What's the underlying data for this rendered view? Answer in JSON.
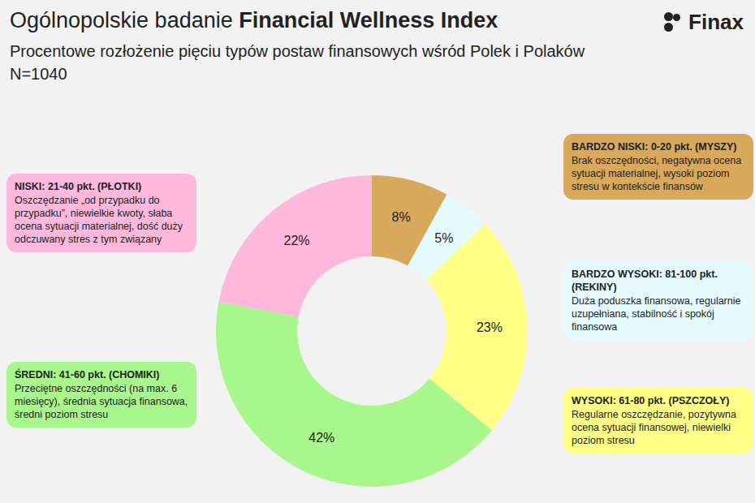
{
  "chart_data": {
    "type": "pie",
    "title": {
      "regular": "Ogólnopolskie badanie ",
      "bold": "Financial Wellness Index"
    },
    "subtitle": "Procentowe rozłożenie pięciu typów postaw finansowych wśród Polek i Polaków",
    "note": "N=1040",
    "logo": "Finax",
    "categories": [
      "BARDZO NISKI: 0-20 pkt. (MYSZY)",
      "BARDZO WYSOKI: 81-100 pkt. (REKINY)",
      "WYSOKI: 61-80 pkt. (PSZCZOŁY)",
      "ŚREDNI: 41-60 pkt. (CHOMIKI)",
      "NISKI: 21-40 pkt. (PŁOTKI)"
    ],
    "descriptions": [
      "Brak oszczędności, negatywna ocena sytuacji materialnej, wysoki poziom stresu w kontekście finansów",
      "Duża poduszka finansowa, regularnie uzupełniana, stabilność i spokój finansowa",
      "Regularne oszczędzanie, pozytywna ocena sytuacji finansowej, niewielki poziom stresu",
      "Przeciętne oszczędności (na max. 6 miesięcy), średnia sytuacja finansowa, średni poziom stresu",
      "Oszczędzanie „od przypadku do przypadku”, niewielkie kwoty, słaba ocena sytuacji materialnej, dość duży odczuwany stres z tym związany"
    ],
    "values": [
      8,
      5,
      23,
      42,
      22
    ],
    "value_labels": [
      "8%",
      "5%",
      "23%",
      "42%",
      "22%"
    ],
    "colors": [
      "#d8a85c",
      "#e4faff",
      "#ffff85",
      "#a8f78c",
      "#ffb8dc"
    ],
    "data_labels": true,
    "legend": false
  }
}
